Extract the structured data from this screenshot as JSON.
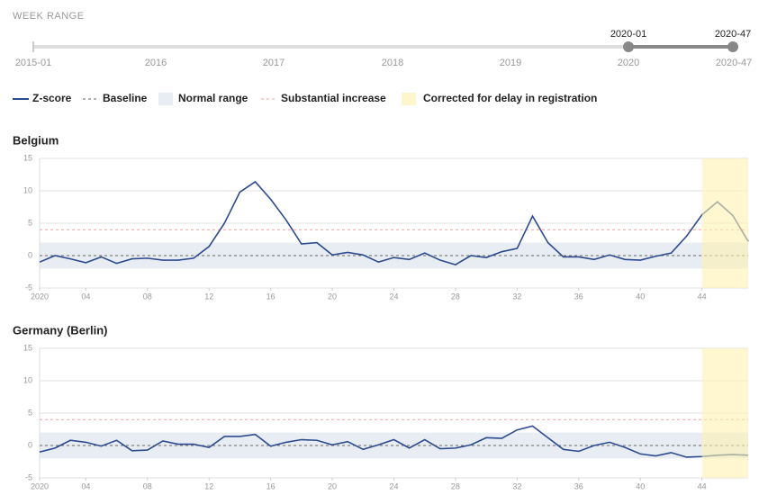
{
  "slider": {
    "label": "WEEK RANGE",
    "axis_labels": [
      "2015-01",
      "2016",
      "2017",
      "2018",
      "2019",
      "2020",
      "2020-47"
    ],
    "handles": [
      "2020-01",
      "2020-47"
    ]
  },
  "legend": [
    "Z-score",
    "Baseline",
    "Normal range",
    "Substantial increase",
    "Corrected for delay in registration"
  ],
  "chart_data": [
    {
      "type": "line",
      "title": "Belgium",
      "x": [
        1,
        2,
        3,
        4,
        5,
        6,
        7,
        8,
        9,
        10,
        11,
        12,
        13,
        14,
        15,
        16,
        17,
        18,
        19,
        20,
        21,
        22,
        23,
        24,
        25,
        26,
        27,
        28,
        29,
        30,
        31,
        32,
        33,
        34,
        35,
        36,
        37,
        38,
        39,
        40,
        41,
        42,
        43,
        44,
        45,
        46,
        47
      ],
      "xlim": [
        1,
        47
      ],
      "xticks": [
        {
          "value": 1,
          "label": "2020"
        },
        {
          "value": 4,
          "label": "04"
        },
        {
          "value": 8,
          "label": "08"
        },
        12,
        16,
        20,
        24,
        28,
        32,
        36,
        40,
        44
      ],
      "ylim": [
        -5,
        15
      ],
      "yticks": [
        -5,
        0,
        5,
        10,
        15
      ],
      "grid": true,
      "series": [
        {
          "color": "#2d4a8f",
          "values": [
            -1.0,
            0,
            -0.5,
            -1.1,
            -0.2,
            -1.2,
            -0.5,
            -0.4,
            -0.7,
            -0.7,
            -0.4,
            1.4,
            5.0,
            9.8,
            11.4,
            8.7,
            5.5,
            1.8,
            2.0,
            0.1,
            0.5,
            0.1,
            -1.0,
            -0.3,
            -0.6,
            0.4,
            -0.7,
            -1.4,
            0,
            -0.3,
            0.6,
            1.1,
            6.1,
            2.0,
            -0.2,
            -0.2,
            -0.6,
            0.1,
            -0.6,
            -0.7,
            -0.1,
            0.4,
            3.0,
            6.3,
            8.3,
            6.2,
            2.2
          ]
        }
      ],
      "baseline": 0,
      "normal_range": [
        -2,
        2
      ],
      "substantial_increase": 4,
      "delay_range": [
        44,
        47
      ]
    },
    {
      "type": "line",
      "title": "Germany (Berlin)",
      "x": [
        1,
        2,
        3,
        4,
        5,
        6,
        7,
        8,
        9,
        10,
        11,
        12,
        13,
        14,
        15,
        16,
        17,
        18,
        19,
        20,
        21,
        22,
        23,
        24,
        25,
        26,
        27,
        28,
        29,
        30,
        31,
        32,
        33,
        34,
        35,
        36,
        37,
        38,
        39,
        40,
        41,
        42,
        43,
        44,
        45,
        46,
        47
      ],
      "xlim": [
        1,
        47
      ],
      "xticks": [
        {
          "value": 1,
          "label": "2020"
        },
        {
          "value": 4,
          "label": "04"
        },
        {
          "value": 8,
          "label": "08"
        },
        12,
        16,
        20,
        24,
        28,
        32,
        36,
        40,
        44
      ],
      "ylim": [
        -5,
        15
      ],
      "yticks": [
        -5,
        0,
        5,
        10,
        15
      ],
      "grid": true,
      "series": [
        {
          "color": "#2d4a8f",
          "values": [
            -1.0,
            -0.4,
            0.8,
            0.5,
            -0.1,
            0.8,
            -0.8,
            -0.7,
            0.7,
            0.2,
            0.2,
            -0.3,
            1.4,
            1.4,
            1.7,
            -0.1,
            0.5,
            0.9,
            0.8,
            0.1,
            0.6,
            -0.6,
            0.1,
            0.9,
            -0.4,
            0.9,
            -0.5,
            -0.4,
            0.1,
            1.2,
            1.1,
            2.4,
            3.0,
            1.2,
            -0.6,
            -0.9,
            0.0,
            0.5,
            -0.3,
            -1.3,
            -1.6,
            -1.1,
            -1.8,
            -1.7,
            -1.5,
            -1.4,
            -1.5
          ]
        }
      ],
      "baseline": 0,
      "normal_range": [
        -2,
        2
      ],
      "substantial_increase": 4,
      "delay_range": [
        44,
        47
      ]
    }
  ]
}
